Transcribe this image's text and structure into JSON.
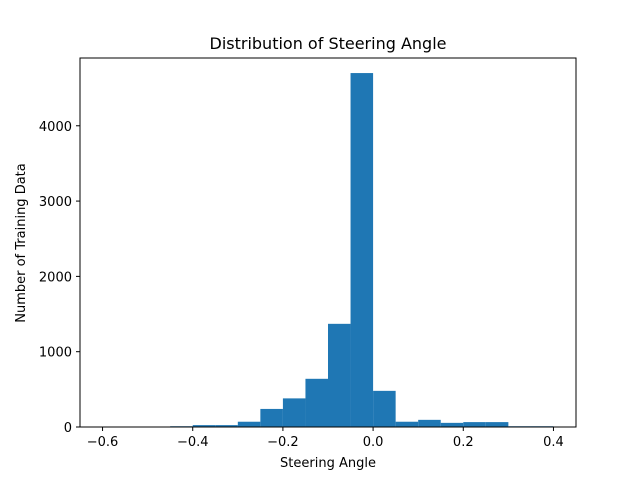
{
  "chart_data": {
    "type": "bar",
    "title": "Distribution of Steering Angle",
    "xlabel": "Steering Angle",
    "ylabel": "Number of Training Data",
    "xlim": [
      -0.65,
      0.45
    ],
    "ylim": [
      0,
      4900
    ],
    "xticks": [
      {
        "value": -0.6,
        "label": "−0.6"
      },
      {
        "value": -0.4,
        "label": "−0.4"
      },
      {
        "value": -0.2,
        "label": "−0.2"
      },
      {
        "value": 0.0,
        "label": "0.0"
      },
      {
        "value": 0.2,
        "label": "0.2"
      },
      {
        "value": 0.4,
        "label": "0.4"
      }
    ],
    "yticks": [
      {
        "value": 0,
        "label": "0"
      },
      {
        "value": 1000,
        "label": "1000"
      },
      {
        "value": 2000,
        "label": "2000"
      },
      {
        "value": 3000,
        "label": "3000"
      },
      {
        "value": 4000,
        "label": "4000"
      }
    ],
    "grid": false,
    "bar_color": "#1f77b4",
    "bins": [
      {
        "x0": -0.6,
        "x1": -0.55,
        "count": 0
      },
      {
        "x0": -0.55,
        "x1": -0.5,
        "count": 0
      },
      {
        "x0": -0.5,
        "x1": -0.45,
        "count": 0
      },
      {
        "x0": -0.45,
        "x1": -0.4,
        "count": 10
      },
      {
        "x0": -0.4,
        "x1": -0.35,
        "count": 25
      },
      {
        "x0": -0.35,
        "x1": -0.3,
        "count": 25
      },
      {
        "x0": -0.3,
        "x1": -0.25,
        "count": 70
      },
      {
        "x0": -0.25,
        "x1": -0.2,
        "count": 240
      },
      {
        "x0": -0.2,
        "x1": -0.15,
        "count": 380
      },
      {
        "x0": -0.15,
        "x1": -0.1,
        "count": 640
      },
      {
        "x0": -0.1,
        "x1": -0.05,
        "count": 1370
      },
      {
        "x0": -0.05,
        "x1": 0.0,
        "count": 4700
      },
      {
        "x0": 0.0,
        "x1": 0.05,
        "count": 480
      },
      {
        "x0": 0.05,
        "x1": 0.1,
        "count": 70
      },
      {
        "x0": 0.1,
        "x1": 0.15,
        "count": 95
      },
      {
        "x0": 0.15,
        "x1": 0.2,
        "count": 55
      },
      {
        "x0": 0.2,
        "x1": 0.25,
        "count": 65
      },
      {
        "x0": 0.25,
        "x1": 0.3,
        "count": 65
      },
      {
        "x0": 0.3,
        "x1": 0.35,
        "count": 10
      },
      {
        "x0": 0.35,
        "x1": 0.4,
        "count": 10
      }
    ]
  }
}
